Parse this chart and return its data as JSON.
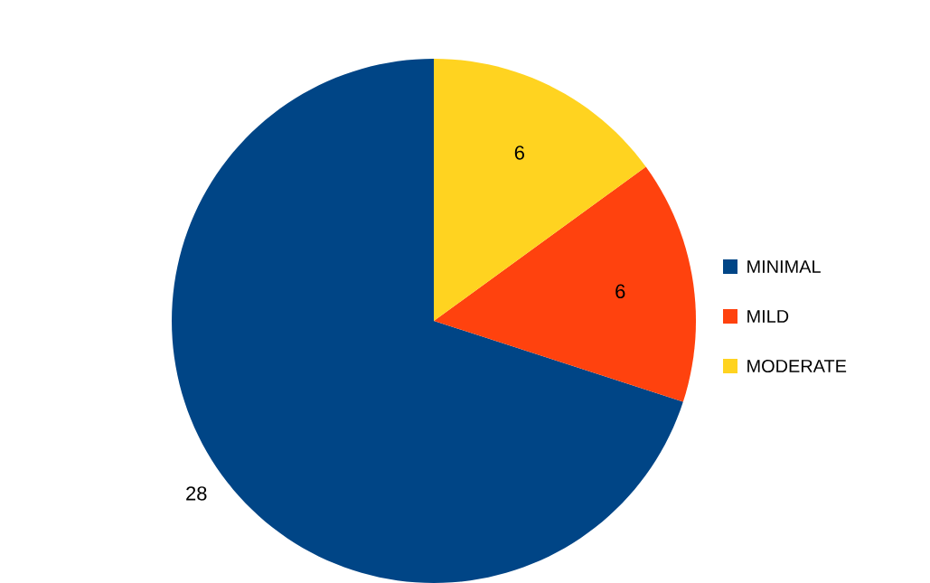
{
  "chart_data": {
    "type": "pie",
    "categories": [
      "MINIMAL",
      "MILD",
      "MODERATE"
    ],
    "values": [
      28,
      6,
      6
    ],
    "colors": [
      "#004586",
      "#ff420e",
      "#ffd320"
    ],
    "data_labels": true,
    "legend": "right"
  }
}
